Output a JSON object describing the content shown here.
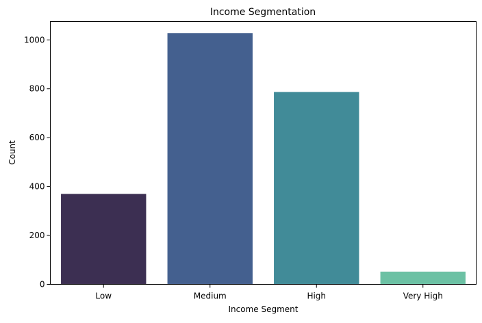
{
  "chart_data": {
    "type": "bar",
    "title": "Income Segmentation",
    "xlabel": "Income Segment",
    "ylabel": "Count",
    "categories": [
      "Low",
      "Medium",
      "High",
      "Very High"
    ],
    "values": [
      370,
      1028,
      787,
      52
    ],
    "colors": [
      "#3c2f52",
      "#44608f",
      "#418b98",
      "#6cc1a4"
    ],
    "ylim": [
      0,
      1075
    ],
    "yticks": [
      0,
      200,
      400,
      600,
      800,
      1000
    ],
    "ytick_labels": [
      "0",
      "200",
      "400",
      "600",
      "800",
      "1000"
    ],
    "grid": false,
    "legend": "none"
  }
}
